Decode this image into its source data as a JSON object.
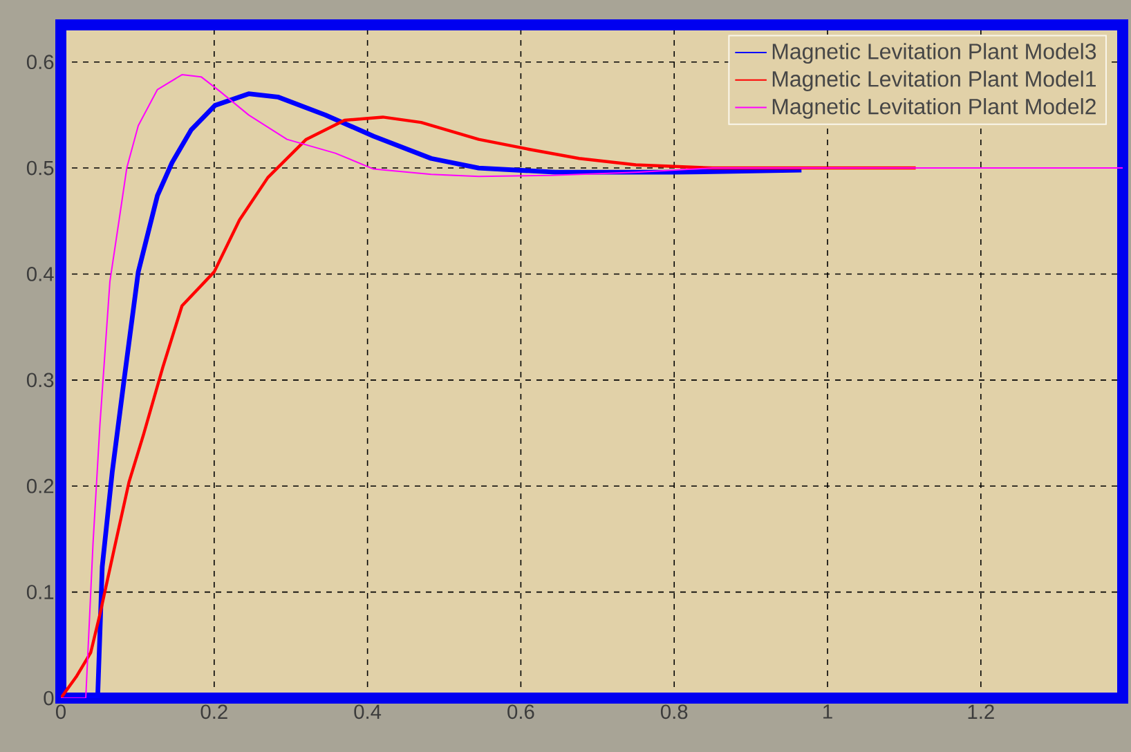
{
  "chart_data": {
    "type": "line",
    "xlim": [
      0,
      1.385
    ],
    "ylim": [
      0,
      0.635
    ],
    "xticks": [
      0,
      0.2,
      0.4,
      0.6,
      0.8,
      1,
      1.2
    ],
    "yticks": [
      0,
      0.1,
      0.2,
      0.3,
      0.4,
      0.5,
      0.6
    ],
    "grid": true,
    "legend": "top right",
    "series": [
      {
        "name": "Magnetic Levitation Plant Model3",
        "color": "#0000ff",
        "x": [
          0,
          0.048,
          0.054,
          0.067,
          0.083,
          0.101,
          0.126,
          0.145,
          0.17,
          0.201,
          0.245,
          0.283,
          0.345,
          0.408,
          0.483,
          0.545,
          0.645,
          0.8,
          0.966
        ],
        "values": [
          0,
          0,
          0.124,
          0.213,
          0.303,
          0.402,
          0.474,
          0.505,
          0.536,
          0.559,
          0.57,
          0.567,
          0.55,
          0.53,
          0.509,
          0.5,
          0.496,
          0.496,
          0.498
        ]
      },
      {
        "name": "Magnetic Levitation Plant Model1",
        "color": "#ff0000",
        "x": [
          0,
          0.02,
          0.039,
          0.051,
          0.07,
          0.089,
          0.108,
          0.133,
          0.158,
          0.2,
          0.233,
          0.27,
          0.32,
          0.37,
          0.42,
          0.47,
          0.545,
          0.608,
          0.676,
          0.75,
          0.85,
          1.115
        ],
        "values": [
          0,
          0.02,
          0.043,
          0.079,
          0.142,
          0.204,
          0.249,
          0.312,
          0.37,
          0.402,
          0.451,
          0.491,
          0.527,
          0.545,
          0.548,
          0.543,
          0.527,
          0.518,
          0.509,
          0.503,
          0.5,
          0.5
        ]
      },
      {
        "name": "Magnetic Levitation Plant Model2",
        "color": "#ff00ff",
        "x": [
          0,
          0.0325,
          0.042,
          0.051,
          0.064,
          0.076,
          0.086,
          0.101,
          0.126,
          0.158,
          0.183,
          0.208,
          0.245,
          0.295,
          0.358,
          0.408,
          0.483,
          0.545,
          0.64,
          0.75,
          0.85,
          1.385
        ],
        "values": [
          0,
          0,
          0.146,
          0.258,
          0.393,
          0.451,
          0.5,
          0.54,
          0.574,
          0.588,
          0.586,
          0.572,
          0.55,
          0.527,
          0.514,
          0.499,
          0.494,
          0.492,
          0.493,
          0.496,
          0.5,
          0.5
        ]
      }
    ]
  }
}
